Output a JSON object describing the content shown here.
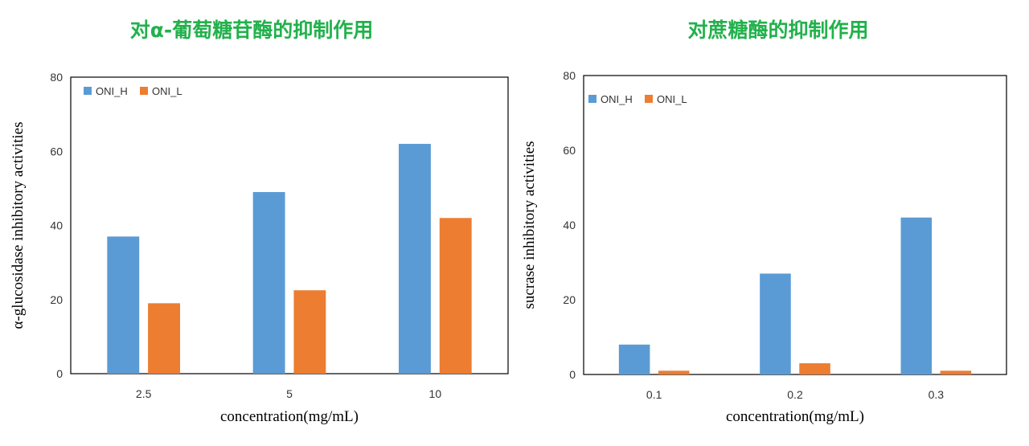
{
  "chart_data": [
    {
      "type": "bar",
      "title": "对α-葡萄糖苷酶的抑制作用",
      "xlabel": "concentration(mg/mL)",
      "ylabel": "α-glucosidase inhibitory activities",
      "categories": [
        "2.5",
        "5",
        "10"
      ],
      "series": [
        {
          "name": "ONI_H",
          "values": [
            37,
            49,
            62
          ],
          "color": "#5b9bd5"
        },
        {
          "name": "ONI_L",
          "values": [
            19,
            22.5,
            42
          ],
          "color": "#ed7d31"
        }
      ],
      "ylim": [
        0,
        80
      ],
      "yticks": [
        "0",
        "20",
        "40",
        "60",
        "80"
      ],
      "grid": false,
      "legend_position": "top-left"
    },
    {
      "type": "bar",
      "title": "对蔗糖酶的抑制作用",
      "xlabel": "concentration(mg/mL)",
      "ylabel": "sucrase inhibitory activities",
      "categories": [
        "0.1",
        "0.2",
        "0.3"
      ],
      "series": [
        {
          "name": "ONI_H",
          "values": [
            8,
            27,
            42
          ],
          "color": "#5b9bd5"
        },
        {
          "name": "ONI_L",
          "values": [
            1,
            3,
            1
          ],
          "color": "#ed7d31"
        }
      ],
      "ylim": [
        0,
        80
      ],
      "yticks": [
        "0",
        "20",
        "40",
        "60",
        "80"
      ],
      "grid": false,
      "legend_position": "top-left"
    }
  ]
}
